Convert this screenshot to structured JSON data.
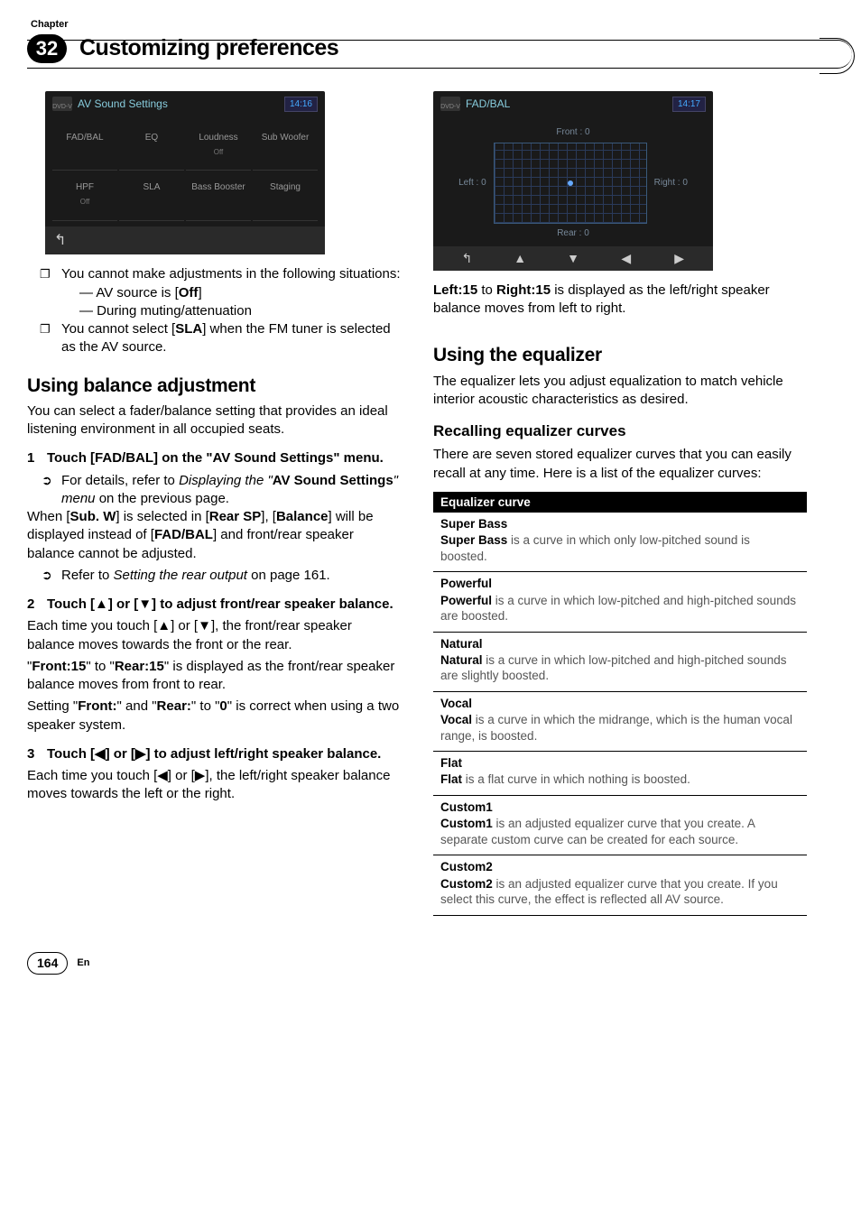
{
  "header": {
    "chapter_label": "Chapter",
    "chapter_number": "32",
    "title": "Customizing preferences"
  },
  "left": {
    "screenshot1": {
      "icon_label": "DVD-V",
      "title": "AV Sound Settings",
      "clock": "14:16",
      "cells": [
        {
          "t": "FAD/BAL",
          "s": ""
        },
        {
          "t": "EQ",
          "s": ""
        },
        {
          "t": "Loudness",
          "s": "Off"
        },
        {
          "t": "Sub Woofer",
          "s": ""
        },
        {
          "t": "HPF",
          "s": "Off"
        },
        {
          "t": "SLA",
          "s": ""
        },
        {
          "t": "Bass Booster",
          "s": ""
        },
        {
          "t": "Staging",
          "s": ""
        }
      ]
    },
    "notes": {
      "n1": "You cannot make adjustments in the following situations:",
      "n1a": "AV source is [",
      "n1a_b": "Off",
      "n1a_c": "]",
      "n1b": "During muting/attenuation",
      "n2a": "You cannot select [",
      "n2b": "SLA",
      "n2c": "] when the FM tuner is selected as the AV source."
    },
    "h2": "Using balance adjustment",
    "intro": "You can select a fader/balance setting that provides an ideal listening environment in all occupied seats.",
    "step1": "Touch [FAD/BAL] on the \"AV Sound Settings\" menu.",
    "step1_ptr_a": "For details, refer to ",
    "step1_ptr_i": "Displaying the \"",
    "step1_ptr_b": "AV Sound Settings",
    "step1_ptr_i2": "\" menu",
    "step1_ptr_c": " on the previous page.",
    "when1": "When [",
    "when_sub": "Sub. W",
    "when2": "] is selected in [",
    "when_rear": "Rear SP",
    "when3": "], [",
    "when_bal": "Balance",
    "when4": "] will be displayed instead of [",
    "when_fad": "FAD/BAL",
    "when5": "] and front/rear speaker balance cannot be adjusted.",
    "ptr2": "Refer to ",
    "ptr2_i": "Setting the rear output",
    "ptr2_b": " on page 161.",
    "step2": "Touch [▲] or [▼] to adjust front/rear speaker balance.",
    "step2_body": "Each time you touch [▲] or [▼], the front/rear speaker balance moves towards the front or the rear.",
    "step2_body2a": "\"",
    "step2_front15": "Front:15",
    "step2_body2b": "\" to \"",
    "step2_rear15": "Rear:15",
    "step2_body2c": "\" is displayed as the front/rear speaker balance moves from front to rear.",
    "step2_body3a": "Setting \"",
    "step2_front": "Front:",
    "step2_body3b": "\" and \"",
    "step2_rear": "Rear:",
    "step2_body3c": "\" to \"",
    "step2_zero": "0",
    "step2_body3d": "\" is correct when using a two speaker system.",
    "step3": "Touch [◀] or [▶] to adjust left/right speaker balance.",
    "step3_body": "Each time you touch [◀] or [▶], the left/right speaker balance moves towards the left or the right."
  },
  "right": {
    "screenshot2": {
      "icon_label": "DVD-V",
      "title": "FAD/BAL",
      "clock": "14:17",
      "front": "Front : 0",
      "rear": "Rear : 0",
      "left": "Left : 0",
      "right_lbl": "Right : 0"
    },
    "p1a": "Left:15",
    "p1b": " to ",
    "p1c": "Right:15",
    "p1d": " is displayed as the left/right speaker balance moves from left to right.",
    "h2": "Using the equalizer",
    "intro": "The equalizer lets you adjust equalization to match vehicle interior acoustic characteristics as desired.",
    "h3": "Recalling equalizer curves",
    "p2": "There are seven stored equalizer curves that you can easily recall at any time. Here is a list of the equalizer curves:",
    "table": {
      "head": "Equalizer curve",
      "rows": [
        {
          "name": "Super Bass",
          "b": "Super Bass",
          "d": " is a curve in which only low-pitched sound is boosted."
        },
        {
          "name": "Powerful",
          "b": "Powerful",
          "d": " is a curve in which low-pitched and high-pitched sounds are boosted."
        },
        {
          "name": "Natural",
          "b": "Natural",
          "d": " is a curve in which low-pitched and high-pitched sounds are slightly boosted."
        },
        {
          "name": "Vocal",
          "b": "Vocal",
          "d": " is a curve in which the midrange, which is the human vocal range, is boosted."
        },
        {
          "name": "Flat",
          "b": "Flat",
          "d": " is a flat curve in which nothing is boosted."
        },
        {
          "name": "Custom1",
          "b": "Custom1",
          "d": " is an adjusted equalizer curve that you create. A separate custom curve can be created for each source."
        },
        {
          "name": "Custom2",
          "b": "Custom2",
          "d": " is an adjusted equalizer curve that you create. If you select this curve, the effect is reflected all AV source."
        }
      ]
    }
  },
  "footer": {
    "page": "164",
    "lang": "En"
  }
}
